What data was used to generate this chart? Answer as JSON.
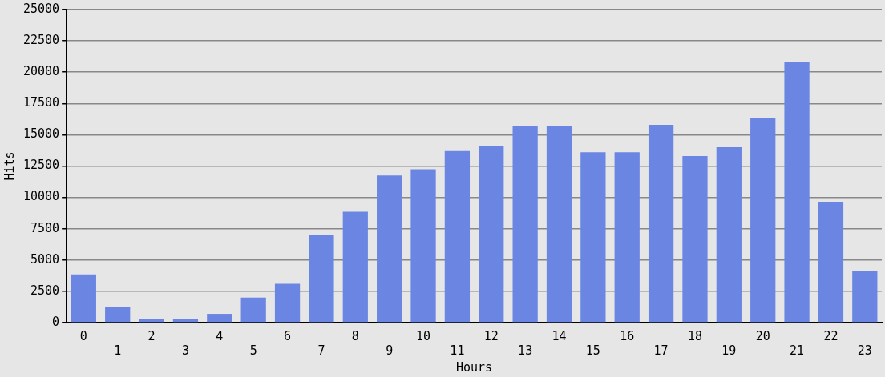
{
  "chart_data": {
    "type": "bar",
    "xlabel": "Hours",
    "ylabel": "Hits",
    "categories": [
      "0",
      "1",
      "2",
      "3",
      "4",
      "5",
      "6",
      "7",
      "8",
      "9",
      "10",
      "11",
      "12",
      "13",
      "14",
      "15",
      "16",
      "17",
      "18",
      "19",
      "20",
      "21",
      "22",
      "23"
    ],
    "values": [
      3850,
      1250,
      300,
      300,
      700,
      2000,
      3100,
      7000,
      8850,
      11750,
      12250,
      13700,
      14100,
      15700,
      15700,
      13600,
      13600,
      15800,
      13300,
      14000,
      16300,
      20800,
      9650,
      4150
    ],
    "color": "#6b86e2",
    "ylim": [
      0,
      25000
    ],
    "yticks": [
      0,
      2500,
      5000,
      7500,
      10000,
      12500,
      15000,
      17500,
      20000,
      22500,
      25000
    ],
    "grid": "y"
  }
}
